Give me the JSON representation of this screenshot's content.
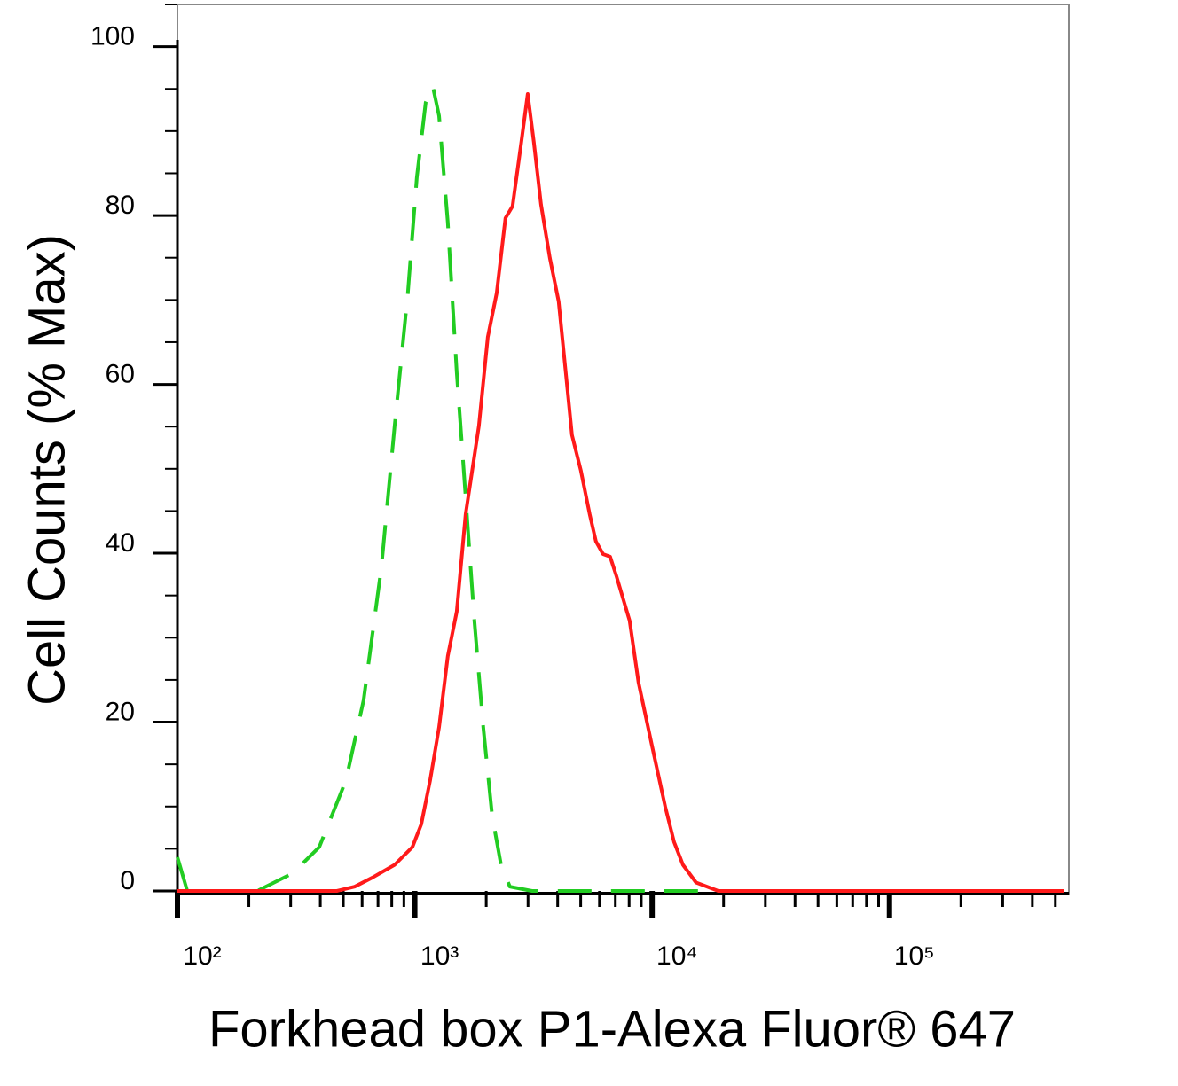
{
  "chart_data": {
    "type": "line",
    "xlabel": "Forkhead box P1-Alexa Fluor® 647",
    "ylabel": "Cell Counts (% Max)",
    "xscale": "log",
    "xlim": [
      100,
      570000
    ],
    "ylim": [
      0,
      105
    ],
    "xticks": [
      {
        "value": 100,
        "label": "10²"
      },
      {
        "value": 1000,
        "label": "10³"
      },
      {
        "value": 10000,
        "label": "10⁴"
      },
      {
        "value": 100000,
        "label": "10⁵"
      }
    ],
    "xminorticks": [
      200,
      300,
      400,
      500,
      600,
      700,
      800,
      900,
      2000,
      3000,
      4000,
      5000,
      6000,
      7000,
      8000,
      9000,
      20000,
      30000,
      40000,
      50000,
      60000,
      70000,
      80000,
      90000,
      200000,
      300000,
      400000,
      500000
    ],
    "yticks": [
      0,
      20,
      40,
      60,
      80,
      100
    ],
    "yminorticks": [
      5,
      10,
      15,
      25,
      30,
      35,
      45,
      50,
      55,
      65,
      70,
      75,
      85,
      90,
      95,
      105
    ],
    "series": [
      {
        "color": "#22cc22",
        "linestyle": "dashed",
        "x": [
          100,
          110,
          217,
          306,
          396,
          513,
          609,
          723,
          823,
          935,
          1020,
          1112,
          1191,
          1266,
          1378,
          1502,
          1638,
          1784,
          1944,
          2119,
          2308,
          2515,
          3120,
          17400,
          97300,
          543000
        ],
        "values": [
          4,
          0,
          0,
          2.1,
          5.2,
          13.1,
          22.6,
          38.3,
          55.1,
          70.8,
          84.5,
          93.4,
          95.3,
          91.8,
          79.2,
          61.4,
          46.7,
          32,
          19.4,
          8.9,
          3.1,
          0.5,
          0,
          0,
          0,
          0
        ]
      },
      {
        "color": "#ff1a1a",
        "linestyle": "solid",
        "x": [
          100,
          470,
          558,
          664,
          823,
          977,
          1065,
          1161,
          1266,
          1378,
          1502,
          1638,
          1864,
          2030,
          2213,
          2411,
          2582,
          2812,
          2990,
          3175,
          3402,
          3707,
          4040,
          4400,
          4595,
          5010,
          5460,
          5795,
          6210,
          6650,
          7070,
          8040,
          8760,
          9970,
          11350,
          12370,
          13480,
          15320,
          19000,
          543000
        ],
        "values": [
          0,
          0,
          0.5,
          1.6,
          3.1,
          5.2,
          7.9,
          13.1,
          19.4,
          27.8,
          33.1,
          44.6,
          55.1,
          65.6,
          70.8,
          79.7,
          81.1,
          88.7,
          94.4,
          88.7,
          81.3,
          75,
          69.8,
          59.3,
          54,
          49.8,
          44.6,
          41.4,
          39.9,
          39.6,
          37.3,
          32,
          24.7,
          17.3,
          10,
          5.8,
          3.1,
          1,
          0,
          0
        ]
      }
    ]
  }
}
